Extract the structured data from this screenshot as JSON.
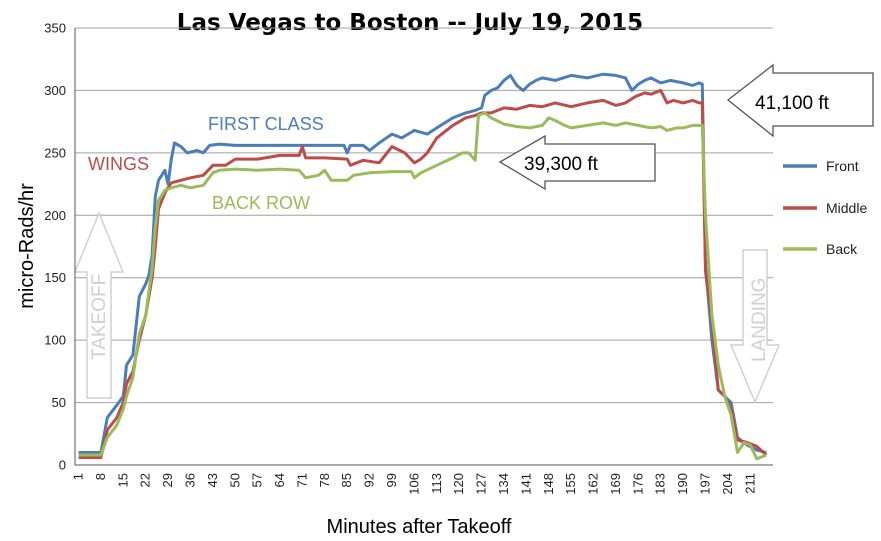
{
  "chart_data": {
    "type": "line",
    "title": "Las Vegas to Boston -- July 19, 2015",
    "xlabel": "Minutes after Takeoff",
    "ylabel": "micro-Rads/hr",
    "ylim": [
      0,
      350
    ],
    "y_ticks": [
      "0",
      "50",
      "100",
      "150",
      "200",
      "250",
      "300",
      "350"
    ],
    "x_ticks": [
      "1",
      "8",
      "15",
      "22",
      "29",
      "36",
      "43",
      "50",
      "57",
      "64",
      "71",
      "78",
      "85",
      "92",
      "99",
      "106",
      "113",
      "120",
      "127",
      "134",
      "141",
      "148",
      "155",
      "162",
      "169",
      "176",
      "183",
      "190",
      "197",
      "204",
      "211"
    ],
    "xlim": [
      1,
      217
    ],
    "grid": "horizontal",
    "legend_position": "right",
    "series": [
      {
        "name": "Front",
        "color": "#4a7ebb",
        "points": [
          [
            1,
            10
          ],
          [
            8,
            10
          ],
          [
            10,
            38
          ],
          [
            13,
            48
          ],
          [
            15,
            55
          ],
          [
            16,
            80
          ],
          [
            18,
            88
          ],
          [
            20,
            135
          ],
          [
            22,
            145
          ],
          [
            23,
            152
          ],
          [
            24,
            168
          ],
          [
            25,
            215
          ],
          [
            26,
            228
          ],
          [
            28,
            236
          ],
          [
            29,
            225
          ],
          [
            30,
            245
          ],
          [
            31,
            258
          ],
          [
            33,
            255
          ],
          [
            35,
            250
          ],
          [
            38,
            252
          ],
          [
            40,
            250
          ],
          [
            42,
            256
          ],
          [
            45,
            257
          ],
          [
            50,
            256
          ],
          [
            57,
            256
          ],
          [
            64,
            256
          ],
          [
            71,
            256
          ],
          [
            78,
            256
          ],
          [
            84,
            256
          ],
          [
            85,
            250
          ],
          [
            86,
            256
          ],
          [
            90,
            256
          ],
          [
            92,
            252
          ],
          [
            95,
            258
          ],
          [
            99,
            265
          ],
          [
            102,
            262
          ],
          [
            106,
            268
          ],
          [
            110,
            265
          ],
          [
            113,
            270
          ],
          [
            118,
            278
          ],
          [
            122,
            282
          ],
          [
            125,
            284
          ],
          [
            127,
            286
          ],
          [
            128,
            296
          ],
          [
            130,
            300
          ],
          [
            132,
            302
          ],
          [
            134,
            308
          ],
          [
            136,
            312
          ],
          [
            138,
            304
          ],
          [
            140,
            300
          ],
          [
            142,
            305
          ],
          [
            144,
            308
          ],
          [
            146,
            310
          ],
          [
            150,
            308
          ],
          [
            155,
            312
          ],
          [
            160,
            310
          ],
          [
            165,
            313
          ],
          [
            169,
            312
          ],
          [
            172,
            310
          ],
          [
            174,
            300
          ],
          [
            176,
            305
          ],
          [
            178,
            308
          ],
          [
            180,
            310
          ],
          [
            183,
            306
          ],
          [
            186,
            308
          ],
          [
            190,
            306
          ],
          [
            193,
            304
          ],
          [
            195,
            306
          ],
          [
            196,
            305
          ],
          [
            197,
            160
          ],
          [
            199,
            100
          ],
          [
            201,
            60
          ],
          [
            203,
            55
          ],
          [
            205,
            50
          ],
          [
            207,
            22
          ],
          [
            210,
            16
          ],
          [
            213,
            12
          ],
          [
            216,
            10
          ]
        ]
      },
      {
        "name": "Middle",
        "color": "#be4b48",
        "points": [
          [
            1,
            6
          ],
          [
            8,
            6
          ],
          [
            10,
            28
          ],
          [
            13,
            38
          ],
          [
            15,
            50
          ],
          [
            16,
            65
          ],
          [
            18,
            75
          ],
          [
            20,
            100
          ],
          [
            22,
            120
          ],
          [
            24,
            150
          ],
          [
            25,
            175
          ],
          [
            26,
            205
          ],
          [
            28,
            218
          ],
          [
            30,
            226
          ],
          [
            33,
            228
          ],
          [
            36,
            230
          ],
          [
            40,
            232
          ],
          [
            43,
            240
          ],
          [
            47,
            240
          ],
          [
            50,
            245
          ],
          [
            57,
            245
          ],
          [
            64,
            248
          ],
          [
            70,
            248
          ],
          [
            71,
            255
          ],
          [
            72,
            246
          ],
          [
            78,
            246
          ],
          [
            85,
            245
          ],
          [
            86,
            240
          ],
          [
            90,
            244
          ],
          [
            95,
            242
          ],
          [
            99,
            255
          ],
          [
            103,
            250
          ],
          [
            106,
            242
          ],
          [
            108,
            245
          ],
          [
            110,
            250
          ],
          [
            113,
            262
          ],
          [
            118,
            272
          ],
          [
            122,
            278
          ],
          [
            125,
            280
          ],
          [
            127,
            282
          ],
          [
            130,
            282
          ],
          [
            134,
            286
          ],
          [
            138,
            285
          ],
          [
            142,
            288
          ],
          [
            146,
            287
          ],
          [
            150,
            290
          ],
          [
            155,
            287
          ],
          [
            160,
            290
          ],
          [
            165,
            292
          ],
          [
            169,
            288
          ],
          [
            172,
            290
          ],
          [
            175,
            295
          ],
          [
            178,
            298
          ],
          [
            180,
            297
          ],
          [
            183,
            300
          ],
          [
            185,
            290
          ],
          [
            187,
            292
          ],
          [
            190,
            290
          ],
          [
            193,
            292
          ],
          [
            195,
            290
          ],
          [
            196,
            290
          ],
          [
            197,
            155
          ],
          [
            199,
            115
          ],
          [
            201,
            60
          ],
          [
            203,
            55
          ],
          [
            205,
            45
          ],
          [
            207,
            20
          ],
          [
            210,
            18
          ],
          [
            213,
            15
          ],
          [
            216,
            8
          ]
        ]
      },
      {
        "name": "Back",
        "color": "#9bbb59",
        "points": [
          [
            1,
            8
          ],
          [
            8,
            8
          ],
          [
            10,
            22
          ],
          [
            13,
            32
          ],
          [
            15,
            45
          ],
          [
            16,
            55
          ],
          [
            18,
            70
          ],
          [
            20,
            105
          ],
          [
            22,
            120
          ],
          [
            24,
            158
          ],
          [
            25,
            190
          ],
          [
            26,
            212
          ],
          [
            28,
            220
          ],
          [
            30,
            222
          ],
          [
            33,
            224
          ],
          [
            36,
            222
          ],
          [
            40,
            224
          ],
          [
            43,
            234
          ],
          [
            45,
            236
          ],
          [
            50,
            237
          ],
          [
            57,
            236
          ],
          [
            64,
            237
          ],
          [
            70,
            236
          ],
          [
            72,
            230
          ],
          [
            76,
            232
          ],
          [
            78,
            236
          ],
          [
            80,
            228
          ],
          [
            85,
            228
          ],
          [
            87,
            232
          ],
          [
            92,
            234
          ],
          [
            99,
            235
          ],
          [
            105,
            235
          ],
          [
            106,
            230
          ],
          [
            108,
            234
          ],
          [
            113,
            240
          ],
          [
            118,
            246
          ],
          [
            121,
            250
          ],
          [
            123,
            250
          ],
          [
            125,
            244
          ],
          [
            126,
            280
          ],
          [
            128,
            282
          ],
          [
            130,
            278
          ],
          [
            134,
            273
          ],
          [
            138,
            271
          ],
          [
            142,
            270
          ],
          [
            146,
            272
          ],
          [
            148,
            278
          ],
          [
            150,
            276
          ],
          [
            153,
            272
          ],
          [
            155,
            270
          ],
          [
            160,
            272
          ],
          [
            165,
            274
          ],
          [
            169,
            272
          ],
          [
            172,
            274
          ],
          [
            176,
            272
          ],
          [
            180,
            270
          ],
          [
            183,
            271
          ],
          [
            185,
            268
          ],
          [
            188,
            270
          ],
          [
            190,
            270
          ],
          [
            193,
            272
          ],
          [
            195,
            272
          ],
          [
            196,
            272
          ],
          [
            197,
            200
          ],
          [
            199,
            120
          ],
          [
            201,
            80
          ],
          [
            203,
            55
          ],
          [
            205,
            40
          ],
          [
            207,
            10
          ],
          [
            209,
            18
          ],
          [
            211,
            16
          ],
          [
            213,
            5
          ],
          [
            216,
            8
          ]
        ]
      }
    ],
    "annotations": {
      "first_class": "FIRST CLASS",
      "wings": "WINGS",
      "back_row": "BACK ROW",
      "alt_high": "41,100 ft",
      "alt_low": "39,300 ft",
      "takeoff": "TAKEOFF",
      "landing": "LANDING"
    }
  }
}
